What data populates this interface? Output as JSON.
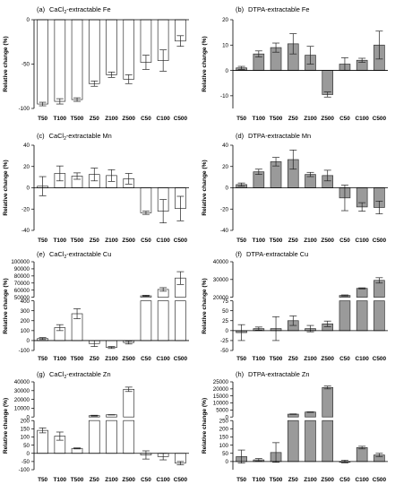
{
  "chart_data": [
    {
      "panel_id": "a",
      "title_prefix": "(a)",
      "title_main": "CaCl",
      "title_sub": "2",
      "title_suffix": "-extractable Fe",
      "type": "bar",
      "ylabel": "Relative change (%)",
      "categories": [
        "T50",
        "T100",
        "T500",
        "Z50",
        "Z100",
        "Z500",
        "C50",
        "C100",
        "C500"
      ],
      "values": [
        -95,
        -92,
        -90,
        -72,
        -62,
        -67,
        -48,
        -46,
        -24
      ],
      "errors": [
        2,
        3,
        2,
        3,
        3,
        5,
        8,
        12,
        6
      ],
      "bar_fill": "#ffffff",
      "ylim": [
        -100,
        0
      ],
      "yticks": [
        {
          "v": 0,
          "label": "0"
        },
        {
          "v": -50,
          "label": "-50"
        },
        {
          "v": -100,
          "label": "-100"
        }
      ]
    },
    {
      "panel_id": "b",
      "title_prefix": "(b)",
      "title_main": "DTPA-extractable Fe",
      "title_sub": "",
      "title_suffix": "",
      "type": "bar",
      "ylabel": "Relative change (%)",
      "categories": [
        "T50",
        "T100",
        "T500",
        "Z50",
        "Z100",
        "Z500",
        "C50",
        "C100",
        "C500"
      ],
      "values": [
        1,
        6.5,
        9,
        10.5,
        6,
        -9.5,
        2.5,
        4,
        10
      ],
      "errors": [
        0.6,
        1.2,
        1.8,
        4,
        3.5,
        1,
        2.5,
        0.8,
        5.5
      ],
      "bar_fill": "#9a9a9a",
      "ylim": [
        -15,
        20
      ],
      "yticks": [
        {
          "v": -10,
          "label": "-10"
        },
        {
          "v": 0,
          "label": "0"
        },
        {
          "v": 10,
          "label": "10"
        },
        {
          "v": 20,
          "label": "20"
        }
      ]
    },
    {
      "panel_id": "c",
      "title_prefix": "(c)",
      "title_main": "CaCl",
      "title_sub": "2",
      "title_suffix": "-extractable Mn",
      "type": "bar",
      "ylabel": "Relative change (%)",
      "categories": [
        "T50",
        "T100",
        "T500",
        "Z50",
        "Z100",
        "Z500",
        "C50",
        "C100",
        "C500"
      ],
      "values": [
        1.5,
        13.5,
        11,
        12.5,
        11.5,
        8.5,
        -23.5,
        -22,
        -19.5
      ],
      "errors": [
        9,
        7,
        3,
        6,
        5.5,
        5,
        1.5,
        11,
        11.5
      ],
      "bar_fill": "#ffffff",
      "ylim": [
        -40,
        40
      ],
      "yticks": [
        {
          "v": -40,
          "label": "-40"
        },
        {
          "v": -20,
          "label": "-20"
        },
        {
          "v": 0,
          "label": "0"
        },
        {
          "v": 20,
          "label": "20"
        },
        {
          "v": 40,
          "label": "40"
        }
      ]
    },
    {
      "panel_id": "d",
      "title_prefix": "(d)",
      "title_main": "DTPA-extractable Mn",
      "title_sub": "",
      "title_suffix": "",
      "type": "bar",
      "ylabel": "Relative change (%)",
      "categories": [
        "T50",
        "T100",
        "T500",
        "Z50",
        "Z100",
        "Z500",
        "C50",
        "C100",
        "C500"
      ],
      "values": [
        3,
        15,
        24.5,
        26.5,
        12.5,
        11.5,
        -9.5,
        -18,
        -18.5
      ],
      "errors": [
        1.5,
        2.5,
        4,
        9,
        2,
        5,
        12,
        4,
        6
      ],
      "bar_fill": "#9a9a9a",
      "ylim": [
        -40,
        40
      ],
      "yticks": [
        {
          "v": -40,
          "label": "-40"
        },
        {
          "v": -20,
          "label": "-20"
        },
        {
          "v": 0,
          "label": "0"
        },
        {
          "v": 20,
          "label": "20"
        },
        {
          "v": 40,
          "label": "40"
        }
      ]
    },
    {
      "panel_id": "e",
      "title_prefix": "(e)",
      "title_main": "CaCl",
      "title_sub": "2",
      "title_suffix": "-extractable Cu",
      "type": "bar",
      "ylabel": "Relative change (%)",
      "broken_axis": true,
      "categories": [
        "T50",
        "T100",
        "T500",
        "Z50",
        "Z100",
        "Z500",
        "C50",
        "C100",
        "C500"
      ],
      "values": [
        20,
        130,
        270,
        -30,
        -70,
        -20,
        52000,
        61000,
        77000
      ],
      "errors": [
        10,
        30,
        50,
        30,
        10,
        15,
        800,
        2500,
        9000
      ],
      "bar_fill": "#ffffff",
      "upper_ylim": [
        50000,
        100000
      ],
      "lower_ylim": [
        -100,
        400
      ],
      "upper_yticks": [
        {
          "v": 50000,
          "label": "50000"
        },
        {
          "v": 60000,
          "label": "60000"
        },
        {
          "v": 70000,
          "label": "70000"
        },
        {
          "v": 80000,
          "label": "80000"
        },
        {
          "v": 90000,
          "label": "90000"
        },
        {
          "v": 100000,
          "label": "100000"
        }
      ],
      "lower_yticks": [
        {
          "v": -100,
          "label": "-100"
        },
        {
          "v": 0,
          "label": "0"
        },
        {
          "v": 100,
          "label": "100"
        },
        {
          "v": 200,
          "label": "200"
        },
        {
          "v": 300,
          "label": "300"
        },
        {
          "v": 400,
          "label": "400"
        }
      ]
    },
    {
      "panel_id": "f",
      "title_prefix": "(f)",
      "title_main": "DTPA-extractable Cu",
      "title_sub": "",
      "title_suffix": "",
      "type": "bar",
      "ylabel": "Relative change (%)",
      "broken_axis": true,
      "categories": [
        "T50",
        "T100",
        "T500",
        "Z50",
        "Z100",
        "Z500",
        "C50",
        "C100",
        "C500"
      ],
      "values": [
        -5,
        5,
        5,
        25,
        5,
        17,
        21000,
        25000,
        29500
      ],
      "errors": [
        20,
        4,
        30,
        12,
        8,
        7,
        300,
        300,
        1500
      ],
      "bar_fill": "#9a9a9a",
      "upper_ylim": [
        20000,
        40000
      ],
      "lower_ylim": [
        -50,
        75
      ],
      "upper_yticks": [
        {
          "v": 20000,
          "label": "20000"
        },
        {
          "v": 30000,
          "label": "30000"
        },
        {
          "v": 40000,
          "label": "40000"
        }
      ],
      "lower_yticks": [
        {
          "v": -50,
          "label": "-50"
        },
        {
          "v": -25,
          "label": "-25"
        },
        {
          "v": 0,
          "label": "0"
        },
        {
          "v": 25,
          "label": "25"
        },
        {
          "v": 50,
          "label": "50"
        },
        {
          "v": 75,
          "label": "75"
        }
      ]
    },
    {
      "panel_id": "g",
      "title_prefix": "(g)",
      "title_main": "CaCl",
      "title_sub": "2",
      "title_suffix": "-extractable Zn",
      "type": "bar",
      "ylabel": "Relative change (%)",
      "broken_axis": true,
      "categories": [
        "T50",
        "T100",
        "T500",
        "Z50",
        "Z100",
        "Z500",
        "C50",
        "C100",
        "C500"
      ],
      "values": [
        140,
        105,
        30,
        1500,
        2500,
        31500,
        -10,
        -20,
        -60
      ],
      "errors": [
        15,
        25,
        3,
        500,
        200,
        2500,
        25,
        20,
        10
      ],
      "bar_fill": "#ffffff",
      "upper_ylim": [
        0,
        40000
      ],
      "lower_ylim": [
        -100,
        200
      ],
      "upper_yticks": [
        {
          "v": 0,
          "label": "0"
        },
        {
          "v": 10000,
          "label": "10000"
        },
        {
          "v": 20000,
          "label": "20000"
        },
        {
          "v": 30000,
          "label": "30000"
        },
        {
          "v": 40000,
          "label": "40000"
        }
      ],
      "lower_yticks": [
        {
          "v": -100,
          "label": "-100"
        },
        {
          "v": -50,
          "label": "-50"
        },
        {
          "v": 0,
          "label": "0"
        },
        {
          "v": 50,
          "label": "50"
        },
        {
          "v": 100,
          "label": "100"
        },
        {
          "v": 150,
          "label": "150"
        },
        {
          "v": 200,
          "label": "200"
        }
      ]
    },
    {
      "panel_id": "h",
      "title_prefix": "(h)",
      "title_main": "DTPA-extractable Zn",
      "title_sub": "",
      "title_suffix": "",
      "type": "bar",
      "ylabel": "Relative change (%)",
      "broken_axis": true,
      "categories": [
        "T50",
        "T100",
        "T500",
        "Z50",
        "Z100",
        "Z500",
        "C50",
        "C100",
        "C500"
      ],
      "values": [
        30,
        10,
        55,
        2000,
        3500,
        21000,
        0,
        85,
        40
      ],
      "errors": [
        40,
        8,
        60,
        200,
        200,
        1000,
        8,
        8,
        10
      ],
      "bar_fill": "#9a9a9a",
      "upper_ylim": [
        0,
        25000
      ],
      "lower_ylim": [
        -50,
        250
      ],
      "upper_yticks": [
        {
          "v": 0,
          "label": "0"
        },
        {
          "v": 5000,
          "label": "5000"
        },
        {
          "v": 10000,
          "label": "10000"
        },
        {
          "v": 15000,
          "label": "15000"
        },
        {
          "v": 20000,
          "label": "20000"
        },
        {
          "v": 25000,
          "label": "25000"
        }
      ],
      "lower_yticks": [
        {
          "v": 0,
          "label": "0"
        },
        {
          "v": 50,
          "label": "50"
        },
        {
          "v": 100,
          "label": "100"
        },
        {
          "v": 150,
          "label": "150"
        },
        {
          "v": 200,
          "label": "200"
        },
        {
          "v": 250,
          "label": "250"
        }
      ]
    }
  ]
}
